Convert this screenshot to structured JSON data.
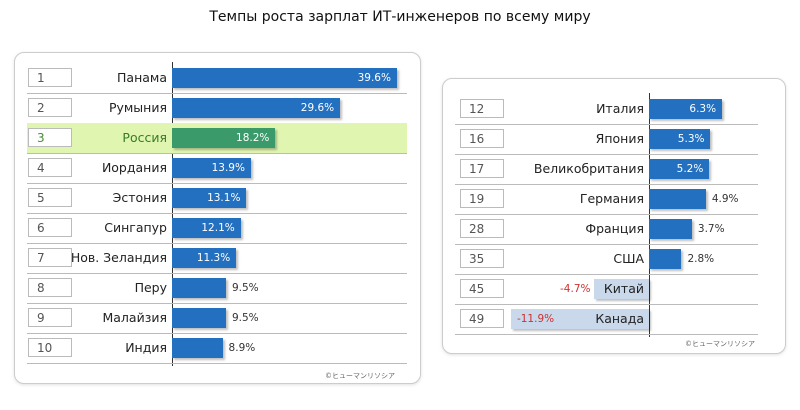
{
  "chart_data": [
    {
      "type": "bar",
      "orientation": "horizontal",
      "title": "Темпы роста зарплат ИТ-инженеров по всему миру",
      "ranks": [
        1,
        2,
        3,
        4,
        5,
        6,
        7,
        8,
        9,
        10
      ],
      "categories": [
        "Панама",
        "Румыния",
        "Россия",
        "Иордания",
        "Эстония",
        "Сингапур",
        "Нов. Зеландия",
        "Перу",
        "Малайзия",
        "Индия"
      ],
      "values": [
        39.6,
        29.6,
        18.2,
        13.9,
        13.1,
        12.1,
        11.3,
        9.5,
        9.5,
        8.9
      ],
      "labels": [
        "39.6%",
        "29.6%",
        "18.2%",
        "13.9%",
        "13.1%",
        "12.1%",
        "11.3%",
        "9.5%",
        "9.5%",
        "8.9%"
      ],
      "highlight": "Россия",
      "credit": "©ヒューマンリソシア"
    },
    {
      "type": "bar",
      "orientation": "horizontal",
      "ranks": [
        12,
        16,
        17,
        19,
        28,
        35,
        45,
        49
      ],
      "categories": [
        "Италия",
        "Япония",
        "Великобритания",
        "Германия",
        "Франция",
        "США",
        "Китай",
        "Канада"
      ],
      "values": [
        6.3,
        5.3,
        5.2,
        4.9,
        3.7,
        2.8,
        -4.7,
        -11.9
      ],
      "labels": [
        "6.3%",
        "5.3%",
        "5.2%",
        "4.9%",
        "3.7%",
        "2.8%",
        "-4.7%",
        "-11.9%"
      ],
      "credit": "©ヒューマンリソシア"
    }
  ],
  "colors": {
    "bar": "#2470c0",
    "highlight_bar": "#3a9a6a",
    "highlight_row": "#dff5b0",
    "negative_bar": "#c9d8ea",
    "negative_text": "#d03030"
  }
}
